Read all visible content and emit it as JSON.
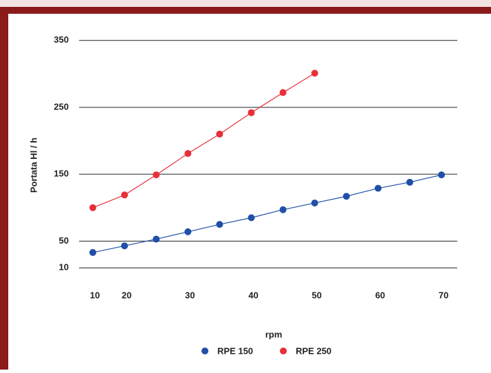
{
  "chart_data": {
    "type": "line",
    "y_label": "Portata Hl / h",
    "x_label": "rpm",
    "categories": [
      "10",
      "20",
      null,
      "30",
      null,
      "40",
      null,
      "50",
      null,
      "60",
      null,
      "70"
    ],
    "series": [
      {
        "name": "RPE 150",
        "color": "#1f4fa8",
        "values": [
          33,
          43,
          53,
          64,
          75,
          85,
          97,
          107,
          117,
          129,
          138,
          149
        ]
      },
      {
        "name": "RPE 250",
        "color": "#e8303a",
        "values": [
          100,
          119,
          149,
          181,
          210,
          242,
          272,
          301,
          null,
          null,
          null,
          null
        ]
      }
    ],
    "ylim": [
      0,
      360
    ],
    "yticks": [
      10,
      50,
      150,
      250,
      350
    ],
    "grid": true
  }
}
